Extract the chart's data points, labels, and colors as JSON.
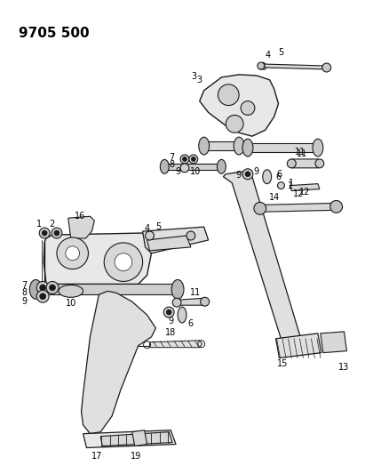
{
  "title": "9705 500",
  "bg_color": "#ffffff",
  "line_color": "#1a1a1a",
  "fig_width": 4.11,
  "fig_height": 5.33,
  "dpi": 100
}
